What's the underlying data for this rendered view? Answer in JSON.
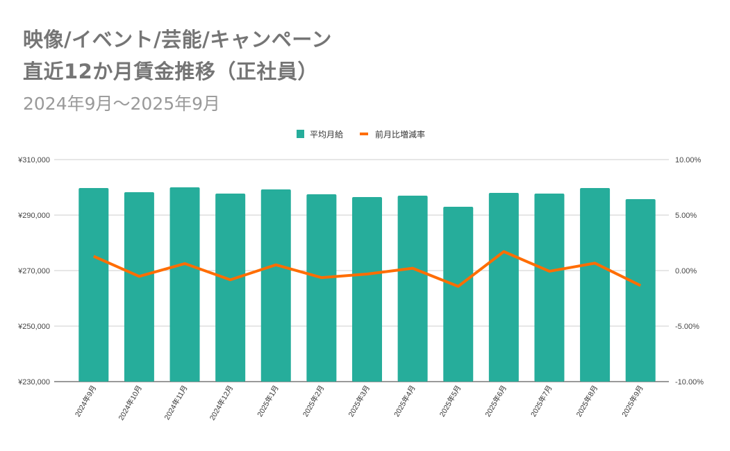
{
  "chart_data": {
    "type": "bar+line",
    "title": [
      "映像/イベント/芸能/キャンペーン",
      "直近12か月賃金推移（正社員）"
    ],
    "subtitle": "2024年9月～2025年9月",
    "categories": [
      "2024年9月",
      "2024年10月",
      "2024年11月",
      "2024年12月",
      "2025年1月",
      "2025年2月",
      "2025年3月",
      "2025年4月",
      "2025年5月",
      "2025年6月",
      "2025年7月",
      "2025年8月",
      "2025年9月"
    ],
    "series": [
      {
        "name": "平均月給",
        "type": "bar",
        "axis": "left",
        "color": "#26ad9b",
        "values": [
          299750,
          298250,
          300000,
          297750,
          299250,
          297500,
          296500,
          297000,
          293000,
          298000,
          297750,
          299750,
          295750
        ]
      },
      {
        "name": "前月比増減率",
        "type": "line",
        "axis": "right",
        "color": "#ff6d01",
        "values": [
          1.29,
          -0.52,
          0.63,
          -0.83,
          0.52,
          -0.63,
          -0.31,
          0.21,
          -1.42,
          1.71,
          -0.06,
          0.67,
          -1.35
        ]
      }
    ],
    "left_axis": {
      "range": [
        230000,
        310000
      ],
      "ticks": [
        "¥230,000",
        "¥250,000",
        "¥270,000",
        "¥290,000",
        "¥310,000"
      ]
    },
    "right_axis": {
      "range": [
        -10,
        10
      ],
      "unit": "%",
      "ticks": [
        "-10.00%",
        "-5.00%",
        "0.00%",
        "5.00%",
        "10.00%"
      ]
    },
    "grid": true,
    "legend": "top"
  }
}
